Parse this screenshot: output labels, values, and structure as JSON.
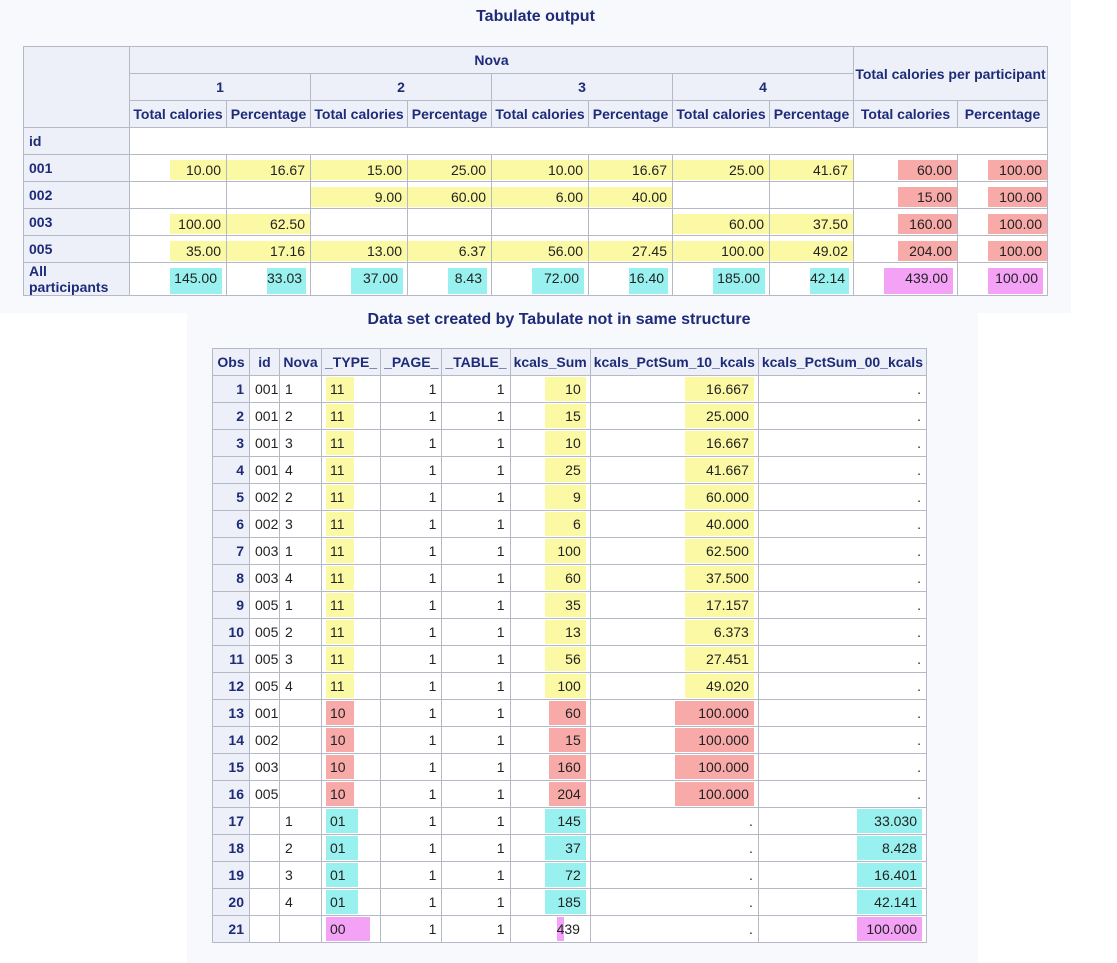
{
  "title1": "Tabulate output",
  "title2": "Data set created by Tabulate not in same structure",
  "tab1": {
    "nova_label": "Nova",
    "total_label": "Total calories per participant",
    "id_label": "id",
    "groups": [
      "1",
      "2",
      "3",
      "4"
    ],
    "sub_total": "Total calories",
    "sub_pct": "Percentage",
    "rows": [
      {
        "id": "001",
        "cells": [
          "10.00",
          "16.67",
          "15.00",
          "25.00",
          "10.00",
          "16.67",
          "25.00",
          "41.67",
          "60.00",
          "100.00"
        ]
      },
      {
        "id": "002",
        "cells": [
          "",
          "",
          "9.00",
          "60.00",
          "6.00",
          "40.00",
          "",
          "",
          "15.00",
          "100.00"
        ]
      },
      {
        "id": "003",
        "cells": [
          "100.00",
          "62.50",
          "",
          "",
          "",
          "",
          "60.00",
          "37.50",
          "160.00",
          "100.00"
        ]
      },
      {
        "id": "005",
        "cells": [
          "35.00",
          "17.16",
          "13.00",
          "6.37",
          "56.00",
          "27.45",
          "100.00",
          "49.02",
          "204.00",
          "100.00"
        ]
      },
      {
        "id": "All participants",
        "cells": [
          "145.00",
          "33.03",
          "37.00",
          "8.43",
          "72.00",
          "16.40",
          "185.00",
          "42.14",
          "439.00",
          "100.00"
        ]
      }
    ]
  },
  "tab2": {
    "headers": [
      "Obs",
      "id",
      "Nova",
      "_TYPE_",
      "_PAGE_",
      "_TABLE_",
      "kcals_Sum",
      "kcals_PctSum_10_kcals",
      "kcals_PctSum_00_kcals"
    ],
    "rows": [
      [
        "1",
        "001",
        "1",
        "11",
        "1",
        "1",
        "10",
        "16.667",
        "."
      ],
      [
        "2",
        "001",
        "2",
        "11",
        "1",
        "1",
        "15",
        "25.000",
        "."
      ],
      [
        "3",
        "001",
        "3",
        "11",
        "1",
        "1",
        "10",
        "16.667",
        "."
      ],
      [
        "4",
        "001",
        "4",
        "11",
        "1",
        "1",
        "25",
        "41.667",
        "."
      ],
      [
        "5",
        "002",
        "2",
        "11",
        "1",
        "1",
        "9",
        "60.000",
        "."
      ],
      [
        "6",
        "002",
        "3",
        "11",
        "1",
        "1",
        "6",
        "40.000",
        "."
      ],
      [
        "7",
        "003",
        "1",
        "11",
        "1",
        "1",
        "100",
        "62.500",
        "."
      ],
      [
        "8",
        "003",
        "4",
        "11",
        "1",
        "1",
        "60",
        "37.500",
        "."
      ],
      [
        "9",
        "005",
        "1",
        "11",
        "1",
        "1",
        "35",
        "17.157",
        "."
      ],
      [
        "10",
        "005",
        "2",
        "11",
        "1",
        "1",
        "13",
        "6.373",
        "."
      ],
      [
        "11",
        "005",
        "3",
        "11",
        "1",
        "1",
        "56",
        "27.451",
        "."
      ],
      [
        "12",
        "005",
        "4",
        "11",
        "1",
        "1",
        "100",
        "49.020",
        "."
      ],
      [
        "13",
        "001",
        "",
        "10",
        "1",
        "1",
        "60",
        "100.000",
        "."
      ],
      [
        "14",
        "002",
        "",
        "10",
        "1",
        "1",
        "15",
        "100.000",
        "."
      ],
      [
        "15",
        "003",
        "",
        "10",
        "1",
        "1",
        "160",
        "100.000",
        "."
      ],
      [
        "16",
        "005",
        "",
        "10",
        "1",
        "1",
        "204",
        "100.000",
        "."
      ],
      [
        "17",
        "",
        "1",
        "01",
        "1",
        "1",
        "145",
        ".",
        "33.030"
      ],
      [
        "18",
        "",
        "2",
        "01",
        "1",
        "1",
        "37",
        ".",
        "8.428"
      ],
      [
        "19",
        "",
        "3",
        "01",
        "1",
        "1",
        "72",
        ".",
        "16.401"
      ],
      [
        "20",
        "",
        "4",
        "01",
        "1",
        "1",
        "185",
        ".",
        "42.141"
      ],
      [
        "21",
        "",
        "",
        "00",
        "1",
        "1",
        "439",
        ".",
        "100.000"
      ]
    ]
  },
  "colors": {
    "yellow": "#fbf9a4",
    "red": "#f8aaa8",
    "cyan": "#98f1ef",
    "magenta": "#f4a2f6"
  }
}
